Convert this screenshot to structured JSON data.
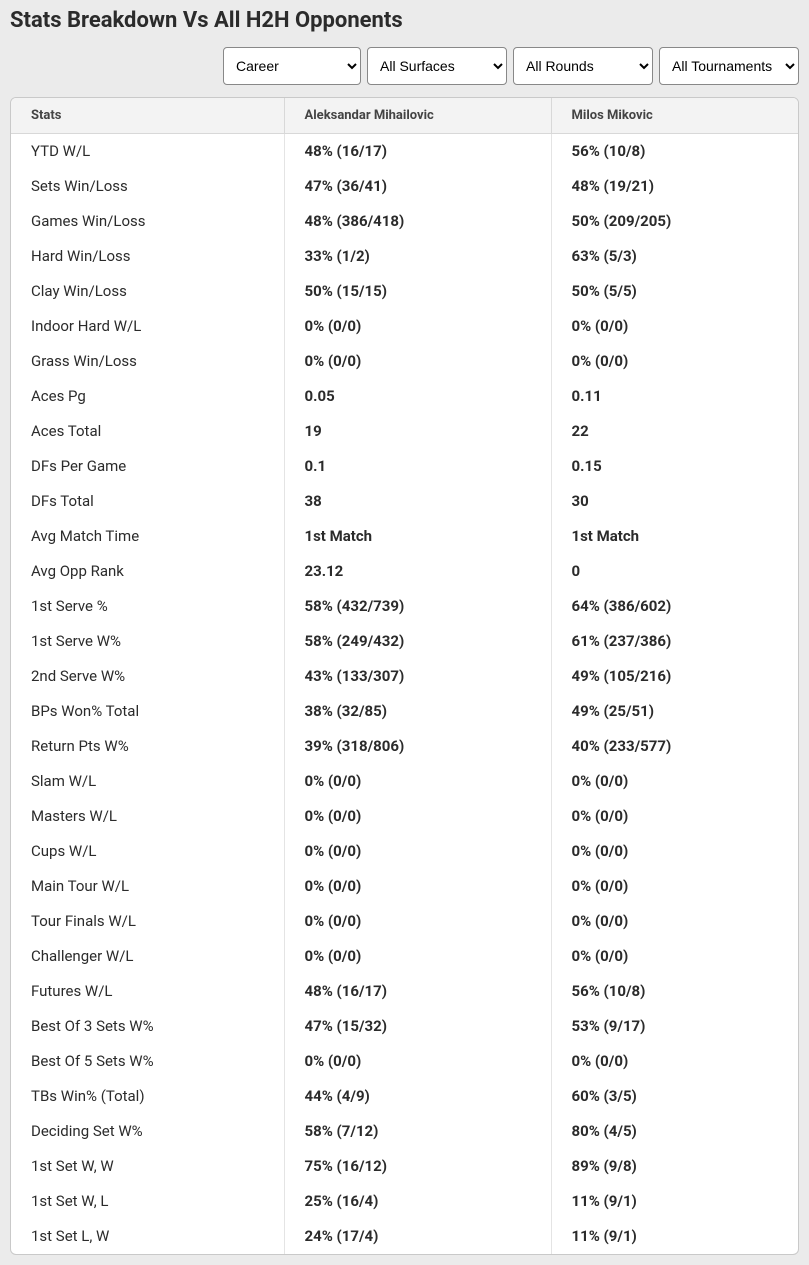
{
  "title": "Stats Breakdown Vs All H2H Opponents",
  "filters": {
    "time": {
      "selected": "Career",
      "options": [
        "Career"
      ]
    },
    "surface": {
      "selected": "All Surfaces",
      "options": [
        "All Surfaces"
      ]
    },
    "round": {
      "selected": "All Rounds",
      "options": [
        "All Rounds"
      ]
    },
    "tournament": {
      "selected": "All Tournaments",
      "options": [
        "All Tournaments"
      ]
    }
  },
  "table": {
    "headers": {
      "stats": "Stats",
      "p1": "Aleksandar Mihailovic",
      "p2": "Milos Mikovic"
    },
    "rows": [
      {
        "stat": "YTD W/L",
        "p1": "48% (16/17)",
        "p2": "56% (10/8)"
      },
      {
        "stat": "Sets Win/Loss",
        "p1": "47% (36/41)",
        "p2": "48% (19/21)"
      },
      {
        "stat": "Games Win/Loss",
        "p1": "48% (386/418)",
        "p2": "50% (209/205)"
      },
      {
        "stat": "Hard Win/Loss",
        "p1": "33% (1/2)",
        "p2": "63% (5/3)"
      },
      {
        "stat": "Clay Win/Loss",
        "p1": "50% (15/15)",
        "p2": "50% (5/5)"
      },
      {
        "stat": "Indoor Hard W/L",
        "p1": "0% (0/0)",
        "p2": "0% (0/0)"
      },
      {
        "stat": "Grass Win/Loss",
        "p1": "0% (0/0)",
        "p2": "0% (0/0)"
      },
      {
        "stat": "Aces Pg",
        "p1": "0.05",
        "p2": "0.11"
      },
      {
        "stat": "Aces Total",
        "p1": "19",
        "p2": "22"
      },
      {
        "stat": "DFs Per Game",
        "p1": "0.1",
        "p2": "0.15"
      },
      {
        "stat": "DFs Total",
        "p1": "38",
        "p2": "30"
      },
      {
        "stat": "Avg Match Time",
        "p1": "1st Match",
        "p2": "1st Match"
      },
      {
        "stat": "Avg Opp Rank",
        "p1": "23.12",
        "p2": "0"
      },
      {
        "stat": "1st Serve %",
        "p1": "58% (432/739)",
        "p2": "64% (386/602)"
      },
      {
        "stat": "1st Serve W%",
        "p1": "58% (249/432)",
        "p2": "61% (237/386)"
      },
      {
        "stat": "2nd Serve W%",
        "p1": "43% (133/307)",
        "p2": "49% (105/216)"
      },
      {
        "stat": "BPs Won% Total",
        "p1": "38% (32/85)",
        "p2": "49% (25/51)"
      },
      {
        "stat": "Return Pts W%",
        "p1": "39% (318/806)",
        "p2": "40% (233/577)"
      },
      {
        "stat": "Slam W/L",
        "p1": "0% (0/0)",
        "p2": "0% (0/0)"
      },
      {
        "stat": "Masters W/L",
        "p1": "0% (0/0)",
        "p2": "0% (0/0)"
      },
      {
        "stat": "Cups W/L",
        "p1": "0% (0/0)",
        "p2": "0% (0/0)"
      },
      {
        "stat": "Main Tour W/L",
        "p1": "0% (0/0)",
        "p2": "0% (0/0)"
      },
      {
        "stat": "Tour Finals W/L",
        "p1": "0% (0/0)",
        "p2": "0% (0/0)"
      },
      {
        "stat": "Challenger W/L",
        "p1": "0% (0/0)",
        "p2": "0% (0/0)"
      },
      {
        "stat": "Futures W/L",
        "p1": "48% (16/17)",
        "p2": "56% (10/8)"
      },
      {
        "stat": "Best Of 3 Sets W%",
        "p1": "47% (15/32)",
        "p2": "53% (9/17)"
      },
      {
        "stat": "Best Of 5 Sets W%",
        "p1": "0% (0/0)",
        "p2": "0% (0/0)"
      },
      {
        "stat": "TBs Win% (Total)",
        "p1": "44% (4/9)",
        "p2": "60% (3/5)"
      },
      {
        "stat": "Deciding Set W%",
        "p1": "58% (7/12)",
        "p2": "80% (4/5)"
      },
      {
        "stat": "1st Set W, W",
        "p1": "75% (16/12)",
        "p2": "89% (9/8)"
      },
      {
        "stat": "1st Set W, L",
        "p1": "25% (16/4)",
        "p2": "11% (9/1)"
      },
      {
        "stat": "1st Set L, W",
        "p1": "24% (17/4)",
        "p2": "11% (9/1)"
      }
    ]
  }
}
